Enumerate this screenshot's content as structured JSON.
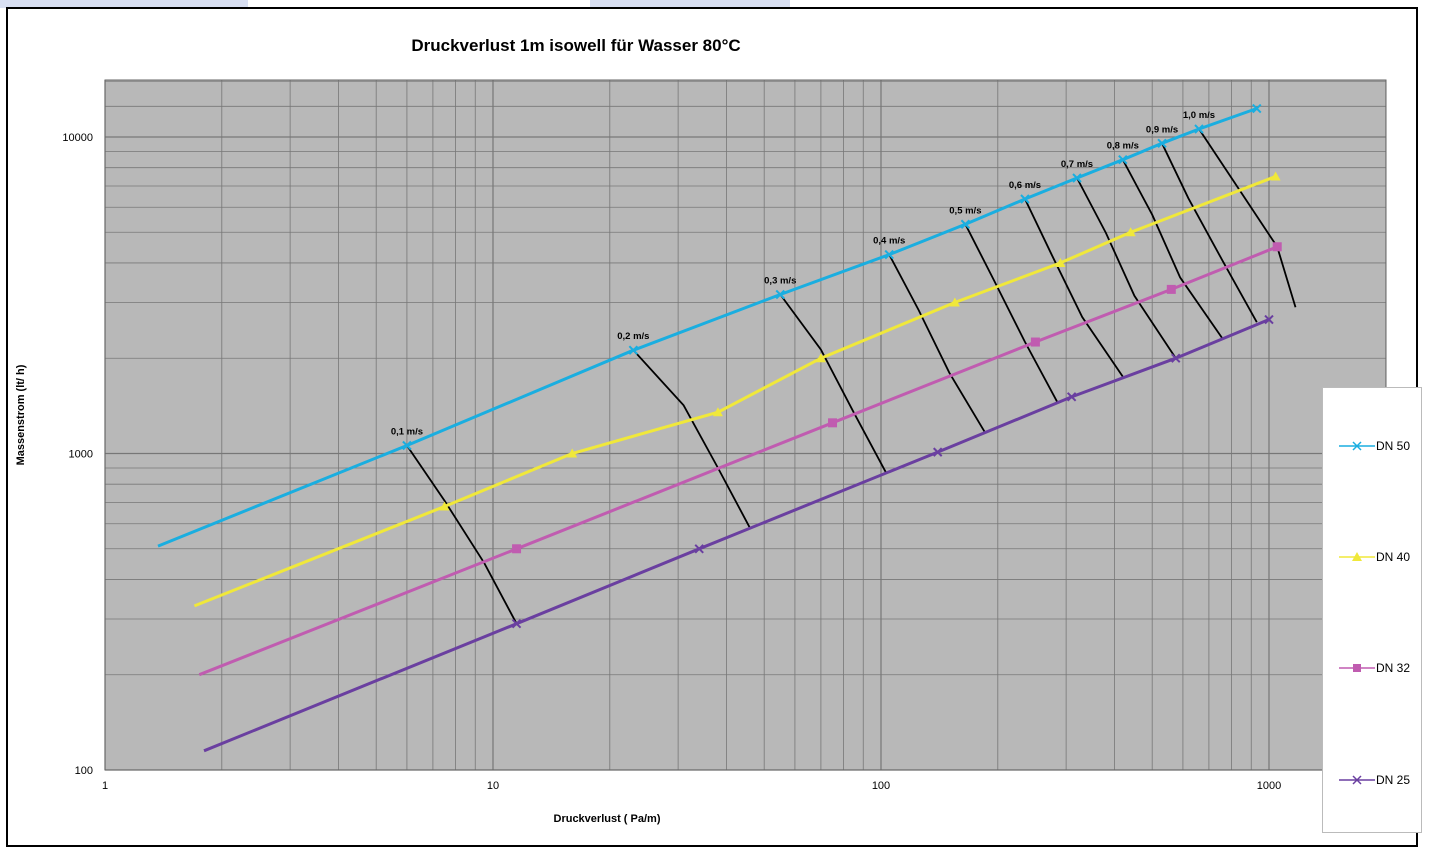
{
  "chart_data": {
    "type": "line",
    "title": "Druckverlust  1m  isowell für Wasser 80°C",
    "xlabel": "Druckverlust ( Pa/m)",
    "ylabel": "Massenstrom (lt/ h)",
    "x_scale": "log",
    "y_scale": "log",
    "xlim": [
      1,
      1000
    ],
    "ylim": [
      100,
      10000
    ],
    "x_ticks": [
      "1",
      "10",
      "100",
      "1000"
    ],
    "y_ticks": [
      "100",
      "1000",
      "10000"
    ],
    "grid": true,
    "legend_position": "right",
    "series": [
      {
        "name": "DN 50",
        "color": "#1aaee0",
        "marker": "x",
        "x": [
          1.37,
          6.0,
          23.0,
          55.0,
          105.0,
          165.0,
          235.0,
          320.0,
          420.0,
          530.0,
          660.0,
          930.0
        ],
        "y": [
          510,
          1060,
          2120,
          3180,
          4250,
          5300,
          6370,
          7420,
          8480,
          9550,
          10600,
          12300
        ]
      },
      {
        "name": "DN 40",
        "color": "#f0e83a",
        "marker": "triangle",
        "x": [
          1.7,
          7.5,
          16.0,
          38.0,
          70.0,
          155.0,
          290.0,
          440.0,
          1040.0
        ],
        "y": [
          330,
          680,
          1000,
          1350,
          2000,
          3000,
          4000,
          5000,
          7500
        ]
      },
      {
        "name": "DN 32",
        "color": "#c05cb0",
        "marker": "square",
        "x": [
          1.75,
          11.5,
          75.0,
          250.0,
          560.0,
          1050.0
        ],
        "y": [
          200,
          500,
          1250,
          2250,
          3300,
          4500
        ]
      },
      {
        "name": "DN 25",
        "color": "#6a3fa0",
        "marker": "x",
        "x": [
          1.8,
          11.5,
          34.0,
          140.0,
          310.0,
          575.0,
          1000.0
        ],
        "y": [
          115,
          290,
          500,
          1010,
          1510,
          2000,
          2650
        ]
      }
    ],
    "velocity_lines": [
      {
        "label": "0,1 m/s",
        "x": [
          6.0,
          7.5,
          9.5,
          11.5
        ],
        "y": [
          1060,
          710,
          450,
          290
        ]
      },
      {
        "label": "0,2 m/s",
        "x": [
          23.0,
          31.0,
          38.0,
          46.0
        ],
        "y": [
          2120,
          1420,
          900,
          580
        ]
      },
      {
        "label": "0,3 m/s",
        "x": [
          55.0,
          70.0,
          85.0,
          103.0
        ],
        "y": [
          3180,
          2130,
          1350,
          870
        ]
      },
      {
        "label": "0,4 m/s",
        "x": [
          105.0,
          125.0,
          150.0,
          185.0
        ],
        "y": [
          4250,
          2840,
          1800,
          1170
        ]
      },
      {
        "label": "0,5 m/s",
        "x": [
          165.0,
          195.0,
          235.0,
          285.0
        ],
        "y": [
          5300,
          3550,
          2250,
          1450
        ]
      },
      {
        "label": "0,6 m/s",
        "x": [
          235.0,
          275.0,
          330.0,
          420.0
        ],
        "y": [
          6370,
          4260,
          2700,
          1750
        ]
      },
      {
        "label": "0,7 m/s",
        "x": [
          320.0,
          380.0,
          450.0,
          575.0
        ],
        "y": [
          7420,
          4970,
          3150,
          2000
        ]
      },
      {
        "label": "0,8 m/s",
        "x": [
          420.0,
          500.0,
          590.0,
          760.0
        ],
        "y": [
          8480,
          5680,
          3600,
          2300
        ]
      },
      {
        "label": "0,9 m/s",
        "x": [
          530.0,
          620.0,
          760.0,
          930.0
        ],
        "y": [
          9550,
          6400,
          4050,
          2600
        ]
      },
      {
        "label": "1,0 m/s",
        "x": [
          660.0,
          820.0,
          1050.0,
          1170.0
        ],
        "y": [
          10600,
          7100,
          4500,
          2900
        ]
      }
    ]
  }
}
